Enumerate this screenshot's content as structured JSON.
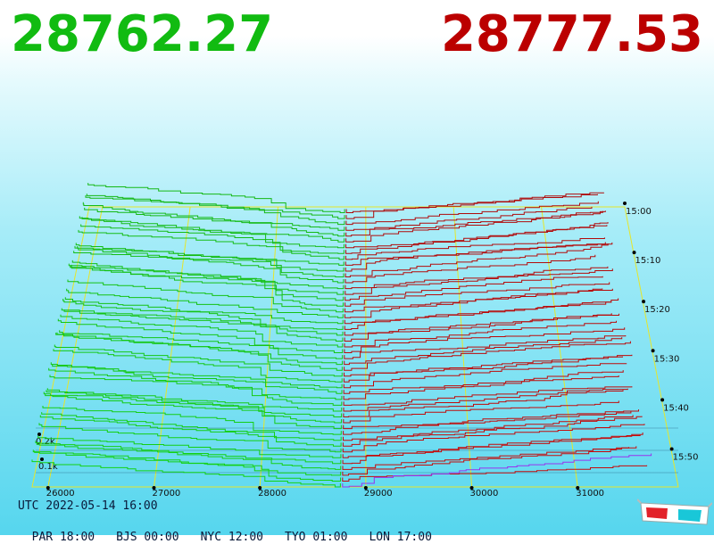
{
  "header": {
    "bid_price": "28762.27",
    "ask_price": "28777.53",
    "bid_color": "#11bb11",
    "ask_color": "#bb0000"
  },
  "footer": {
    "utc_label": "UTC 2022-05-14 16:00",
    "timezones": [
      {
        "label": "PAR 18:00"
      },
      {
        "label": "BJS 00:00"
      },
      {
        "label": "NYC 12:00"
      },
      {
        "label": "TYO 01:00"
      },
      {
        "label": "LON 17:00"
      }
    ]
  },
  "icons": {
    "glasses": "3d-glasses-icon"
  },
  "chart_data": {
    "type": "area",
    "x_ticks": [
      "26000",
      "27000",
      "28000",
      "29000",
      "30000",
      "31000"
    ],
    "x_range": [
      25850,
      31950
    ],
    "time_ticks": [
      "15:00",
      "15:10",
      "15:20",
      "15:30",
      "15:40",
      "15:50"
    ],
    "volume_ticks": [
      "0.2k",
      "0.1k"
    ],
    "snapshots": 48,
    "bid_color": "#11bb11",
    "ask_color": "#bb0000",
    "mid_price": 28770
  }
}
